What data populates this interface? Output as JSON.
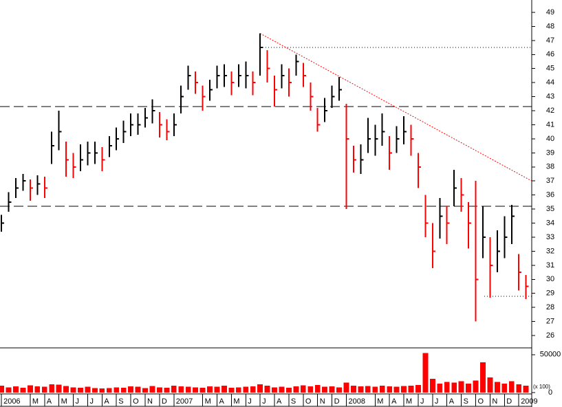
{
  "chart_data": {
    "type": "ohlc",
    "x": [
      0,
      0.5,
      1,
      1.5,
      2,
      2.5,
      3,
      3.5,
      4,
      4.5,
      5,
      5.5,
      6,
      6.5,
      7,
      7.5,
      8,
      8.5,
      9,
      9.5,
      10,
      10.5,
      11,
      11.5,
      12,
      12.5,
      13,
      13.5,
      14,
      14.5,
      15,
      15.5,
      16,
      16.5,
      17,
      17.5,
      18,
      18.5,
      19,
      19.5,
      20,
      20.5,
      21,
      21.5,
      22,
      22.5,
      23,
      23.5,
      24,
      24.5,
      25,
      25.5,
      26,
      26.5,
      27,
      27.5,
      28,
      28.5,
      29,
      29.5,
      30,
      30.5,
      31,
      31.5,
      32,
      32.5,
      33,
      33.5,
      34,
      34.5,
      35,
      35.5,
      36,
      36.5
    ],
    "high": [
      34.6,
      36.2,
      37.2,
      37.5,
      37.1,
      37.4,
      37.3,
      40.5,
      42,
      39.8,
      39,
      39.6,
      39.8,
      39.8,
      39.4,
      40.2,
      40.8,
      41.3,
      41.8,
      41.8,
      42.2,
      42.8,
      41.9,
      41.4,
      41.8,
      43.8,
      45.2,
      44.8,
      43.8,
      44.2,
      45.2,
      45.3,
      44.8,
      45.3,
      45.5,
      44.8,
      47.5,
      46.3,
      44.5,
      45.3,
      45,
      46,
      45.4,
      44,
      42.2,
      42.9,
      43.8,
      44.4,
      42.5,
      39.5,
      39.6,
      41.5,
      41,
      41.8,
      40.2,
      40.9,
      41.6,
      41,
      39,
      36,
      34,
      35.8,
      35.2,
      37.8,
      37.2,
      35.5,
      37,
      35.2,
      33,
      33.5,
      34.5,
      35.3,
      31.8,
      30.3
    ],
    "low": [
      33.4,
      34.8,
      35.8,
      36.3,
      35.6,
      36,
      35.8,
      38.2,
      39.2,
      37.3,
      37.2,
      37.7,
      38.1,
      38.2,
      37.7,
      38.7,
      39.2,
      39.7,
      40.2,
      40.3,
      40.8,
      41.1,
      40.1,
      39.9,
      40.2,
      41.8,
      43.5,
      43.2,
      42,
      42.7,
      43.6,
      43.7,
      43.1,
      43.7,
      43.6,
      43.1,
      44.5,
      44,
      42.3,
      43.6,
      43,
      44.5,
      43.7,
      42,
      40.5,
      41.2,
      42.2,
      42.7,
      35,
      37.6,
      37.5,
      39,
      38.8,
      39.5,
      37.8,
      39,
      39.6,
      38.8,
      36.5,
      33,
      30.8,
      32.9,
      32.5,
      35.2,
      34.8,
      32.2,
      27,
      31.5,
      28.7,
      30.5,
      31.5,
      32.5,
      29.2,
      28.6
    ],
    "close": [
      34,
      35.5,
      36.5,
      37,
      36.5,
      36.8,
      36.5,
      39.5,
      40.5,
      38.5,
      38,
      38.5,
      39,
      39,
      38.5,
      39.5,
      40,
      40.5,
      41,
      41,
      41.5,
      42,
      41,
      40.5,
      41,
      43,
      44.5,
      44,
      43,
      43.5,
      44.5,
      44.5,
      44,
      44.5,
      44.5,
      44,
      46.5,
      45,
      43.5,
      44.5,
      44,
      45.5,
      44.5,
      43,
      41,
      42,
      43,
      43.5,
      40,
      38.5,
      38.5,
      40,
      40,
      40.5,
      39,
      40,
      40.5,
      40,
      38,
      34,
      32,
      34.5,
      34,
      36.5,
      36,
      34,
      30,
      33,
      31,
      32,
      33,
      34.5,
      30.5,
      29.5
    ],
    "volume": [
      9000,
      7000,
      8000,
      6500,
      9500,
      8000,
      7500,
      11000,
      10500,
      8500,
      7000,
      6500,
      7500,
      6000,
      5500,
      6000,
      7000,
      6500,
      8000,
      7500,
      6000,
      8500,
      7000,
      6500,
      9000,
      8000,
      7500,
      7000,
      6500,
      8000,
      7500,
      9000,
      6500,
      7000,
      7500,
      8000,
      11000,
      9000,
      7000,
      7500,
      6500,
      8000,
      9500,
      8000,
      10000,
      7500,
      8000,
      7000,
      13000,
      9000,
      8000,
      8500,
      7500,
      9000,
      8000,
      7500,
      8500,
      9000,
      10000,
      52000,
      18000,
      12000,
      14000,
      13000,
      15000,
      12000,
      16000,
      40000,
      20000,
      14000,
      12000,
      15000,
      11000,
      9000
    ],
    "color_up": "#000000",
    "color_down": "#ff0000",
    "volume_color": "#ff0000",
    "xlim": [
      -0.1,
      36.9
    ],
    "xticks": [
      {
        "value": 0,
        "label": "2006"
      },
      {
        "value": 2,
        "label": "M"
      },
      {
        "value": 3,
        "label": "A"
      },
      {
        "value": 4,
        "label": "M"
      },
      {
        "value": 5,
        "label": "J"
      },
      {
        "value": 6,
        "label": "J"
      },
      {
        "value": 7,
        "label": "A"
      },
      {
        "value": 8,
        "label": "S"
      },
      {
        "value": 9,
        "label": "O"
      },
      {
        "value": 10,
        "label": "N"
      },
      {
        "value": 11,
        "label": "D"
      },
      {
        "value": 12,
        "label": "2007"
      },
      {
        "value": 14,
        "label": "M"
      },
      {
        "value": 15,
        "label": "A"
      },
      {
        "value": 16,
        "label": "M"
      },
      {
        "value": 17,
        "label": "J"
      },
      {
        "value": 18,
        "label": "J"
      },
      {
        "value": 19,
        "label": "A"
      },
      {
        "value": 20,
        "label": "S"
      },
      {
        "value": 21,
        "label": "O"
      },
      {
        "value": 22,
        "label": "N"
      },
      {
        "value": 23,
        "label": "D"
      },
      {
        "value": 24,
        "label": "2008"
      },
      {
        "value": 26,
        "label": "M"
      },
      {
        "value": 27,
        "label": "A"
      },
      {
        "value": 28,
        "label": "M"
      },
      {
        "value": 29,
        "label": "J"
      },
      {
        "value": 30,
        "label": "J"
      },
      {
        "value": 31,
        "label": "A"
      },
      {
        "value": 32,
        "label": "S"
      },
      {
        "value": 33,
        "label": "O"
      },
      {
        "value": 34,
        "label": "N"
      },
      {
        "value": 35,
        "label": "D"
      },
      {
        "value": 36,
        "label": "2009"
      }
    ],
    "ylim": [
      25.17,
      49.88
    ],
    "yticks": [
      26,
      27,
      28,
      29,
      30,
      31,
      32,
      33,
      34,
      35,
      36,
      37,
      38,
      39,
      40,
      41,
      42,
      43,
      44,
      45,
      46,
      47,
      48,
      49
    ],
    "volume_ylim": [
      0,
      58000
    ],
    "volume_yticks": [
      0,
      50000
    ],
    "volume_unit_label": "(x 100)",
    "hlines": [
      {
        "y": 42.3,
        "x": [
          -0.1,
          36.9
        ],
        "style": "dashed",
        "color": "#000000"
      },
      {
        "y": 35.2,
        "x": [
          -0.1,
          36.9
        ],
        "style": "dashed",
        "color": "#000000"
      },
      {
        "y": 46.5,
        "x": [
          18,
          36.9
        ],
        "style": "dotted",
        "color": "#000000"
      },
      {
        "y": 28.8,
        "x": [
          33.6,
          36.9
        ],
        "style": "dotted",
        "color": "#000000"
      }
    ],
    "trendline": {
      "x": [
        18,
        36.9
      ],
      "y": [
        47.5,
        37
      ],
      "color": "#ff0000"
    }
  }
}
